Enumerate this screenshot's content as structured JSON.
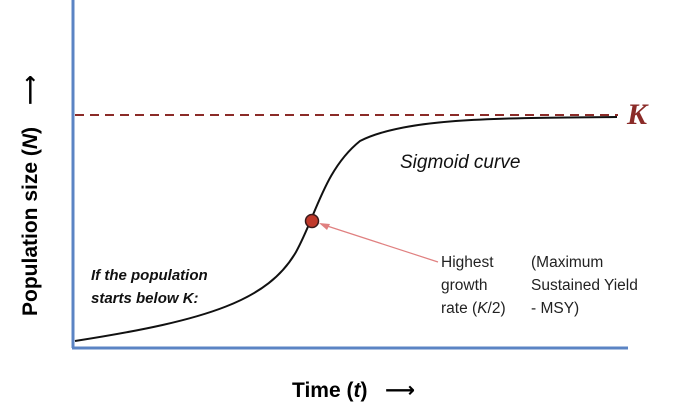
{
  "axes": {
    "y_title_prefix": "Population size (",
    "y_title_var": "N",
    "y_title_suffix": ")",
    "y_arrow": "⟶",
    "x_title_prefix": "Time (",
    "x_title_var": "t",
    "x_title_suffix": ")",
    "x_arrow": "⟶"
  },
  "carrying_capacity": {
    "label": "K",
    "color": "#8b2b28"
  },
  "curve": {
    "label": "Sigmoid curve",
    "color": "#111111"
  },
  "start_note": {
    "line1": "If the population",
    "line2": "starts below K:"
  },
  "peak_note": {
    "line1": "Highest",
    "line2": "growth",
    "line3_prefix": "rate (",
    "line3_var": "K",
    "line3_suffix": "/2)",
    "marker_color": "#c0392b",
    "arrow_color": "#e08080"
  },
  "msy_note": {
    "line1": "(Maximum",
    "line2": "Sustained Yield",
    "line3": "- MSY)"
  },
  "colors": {
    "axis": "#5b84c4"
  }
}
